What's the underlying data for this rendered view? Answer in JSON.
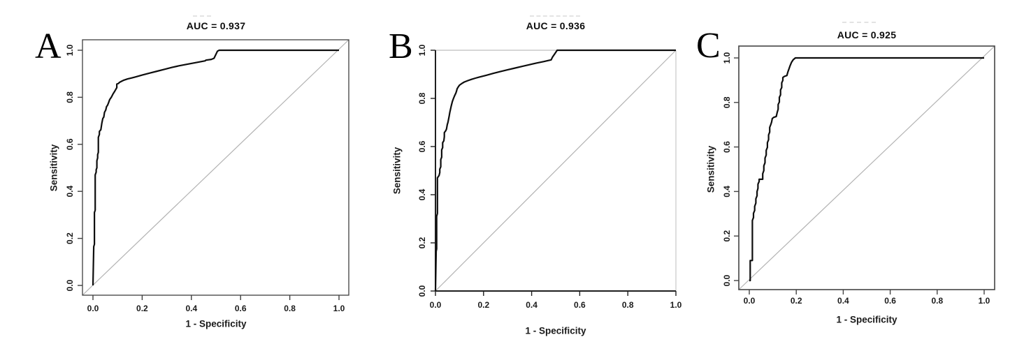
{
  "figure_type": "ROC curve comparison figure, three panels",
  "chart_data": [
    {
      "panel_label": "A",
      "type": "line",
      "title": "AUC = 0.937",
      "auc": 0.937,
      "xlabel": "1 - Specificity",
      "ylabel": "Sensitivity",
      "xlim": [
        0.0,
        1.0
      ],
      "ylim": [
        0.0,
        1.0
      ],
      "x_ticks": [
        0.0,
        0.2,
        0.4,
        0.6,
        0.8,
        1.0
      ],
      "y_ticks": [
        0.0,
        0.2,
        0.4,
        0.6,
        0.8,
        1.0
      ],
      "grid": false,
      "legend": "none",
      "box_style": "full-box",
      "series": [
        {
          "name": "roc-curve",
          "color": "#0d0d0d",
          "points": [
            [
              0.0,
              0.0
            ],
            [
              0.003,
              0.165
            ],
            [
              0.006,
              0.175
            ],
            [
              0.006,
              0.31
            ],
            [
              0.009,
              0.32
            ],
            [
              0.009,
              0.47
            ],
            [
              0.013,
              0.482
            ],
            [
              0.013,
              0.492
            ],
            [
              0.016,
              0.5
            ],
            [
              0.016,
              0.53
            ],
            [
              0.019,
              0.542
            ],
            [
              0.019,
              0.556
            ],
            [
              0.022,
              0.566
            ],
            [
              0.022,
              0.63
            ],
            [
              0.026,
              0.642
            ],
            [
              0.026,
              0.655
            ],
            [
              0.032,
              0.662
            ],
            [
              0.036,
              0.69
            ],
            [
              0.04,
              0.71
            ],
            [
              0.044,
              0.716
            ],
            [
              0.047,
              0.736
            ],
            [
              0.052,
              0.746
            ],
            [
              0.055,
              0.76
            ],
            [
              0.059,
              0.766
            ],
            [
              0.063,
              0.776
            ],
            [
              0.068,
              0.79
            ],
            [
              0.075,
              0.801
            ],
            [
              0.082,
              0.815
            ],
            [
              0.088,
              0.825
            ],
            [
              0.094,
              0.836
            ],
            [
              0.097,
              0.841
            ],
            [
              0.097,
              0.856
            ],
            [
              0.104,
              0.859
            ],
            [
              0.107,
              0.863
            ],
            [
              0.116,
              0.868
            ],
            [
              0.126,
              0.873
            ],
            [
              0.141,
              0.878
            ],
            [
              0.156,
              0.882
            ],
            [
              0.171,
              0.886
            ],
            [
              0.201,
              0.895
            ],
            [
              0.231,
              0.903
            ],
            [
              0.261,
              0.911
            ],
            [
              0.291,
              0.919
            ],
            [
              0.321,
              0.927
            ],
            [
              0.351,
              0.934
            ],
            [
              0.381,
              0.94
            ],
            [
              0.411,
              0.946
            ],
            [
              0.441,
              0.952
            ],
            [
              0.456,
              0.955
            ],
            [
              0.459,
              0.958
            ],
            [
              0.481,
              0.961
            ],
            [
              0.492,
              0.966
            ],
            [
              0.506,
              0.996
            ],
            [
              0.513,
              1.0
            ],
            [
              1.0,
              1.0
            ]
          ]
        },
        {
          "name": "chance-diagonal",
          "color": "#b3b3b3",
          "points": [
            [
              0.0,
              0.0
            ],
            [
              1.0,
              1.0
            ]
          ]
        }
      ]
    },
    {
      "panel_label": "B",
      "type": "line",
      "title": "AUC = 0.936",
      "auc": 0.936,
      "xlabel": "1 - Specificity",
      "ylabel": "Sensitivity",
      "xlim": [
        0.0,
        1.0
      ],
      "ylim": [
        0.0,
        1.0
      ],
      "x_ticks": [
        0.0,
        0.2,
        0.4,
        0.6,
        0.8,
        1.0
      ],
      "y_ticks": [
        0.0,
        0.2,
        0.4,
        0.6,
        0.8,
        1.0
      ],
      "grid": false,
      "legend": "none",
      "box_style": "dark-axes-gray-top-right",
      "series": [
        {
          "name": "roc-curve",
          "color": "#0d0d0d",
          "points": [
            [
              0.0,
              0.0
            ],
            [
              0.003,
              0.165
            ],
            [
              0.005,
              0.175
            ],
            [
              0.005,
              0.31
            ],
            [
              0.008,
              0.322
            ],
            [
              0.008,
              0.47
            ],
            [
              0.015,
              0.48
            ],
            [
              0.018,
              0.492
            ],
            [
              0.018,
              0.506
            ],
            [
              0.022,
              0.516
            ],
            [
              0.022,
              0.546
            ],
            [
              0.026,
              0.556
            ],
            [
              0.026,
              0.586
            ],
            [
              0.03,
              0.596
            ],
            [
              0.03,
              0.616
            ],
            [
              0.035,
              0.624
            ],
            [
              0.037,
              0.641
            ],
            [
              0.037,
              0.658
            ],
            [
              0.043,
              0.666
            ],
            [
              0.046,
              0.673
            ],
            [
              0.049,
              0.691
            ],
            [
              0.052,
              0.701
            ],
            [
              0.057,
              0.726
            ],
            [
              0.06,
              0.743
            ],
            [
              0.066,
              0.77
            ],
            [
              0.07,
              0.786
            ],
            [
              0.075,
              0.8
            ],
            [
              0.08,
              0.812
            ],
            [
              0.085,
              0.822
            ],
            [
              0.088,
              0.832
            ],
            [
              0.09,
              0.84
            ],
            [
              0.095,
              0.848
            ],
            [
              0.1,
              0.855
            ],
            [
              0.11,
              0.862
            ],
            [
              0.12,
              0.868
            ],
            [
              0.135,
              0.874
            ],
            [
              0.15,
              0.879
            ],
            [
              0.166,
              0.884
            ],
            [
              0.181,
              0.888
            ],
            [
              0.211,
              0.896
            ],
            [
              0.241,
              0.904
            ],
            [
              0.271,
              0.912
            ],
            [
              0.301,
              0.919
            ],
            [
              0.331,
              0.926
            ],
            [
              0.361,
              0.933
            ],
            [
              0.391,
              0.94
            ],
            [
              0.421,
              0.947
            ],
            [
              0.451,
              0.953
            ],
            [
              0.468,
              0.957
            ],
            [
              0.481,
              0.96
            ],
            [
              0.487,
              0.972
            ],
            [
              0.496,
              0.985
            ],
            [
              0.506,
              1.0
            ],
            [
              1.0,
              1.0
            ]
          ]
        },
        {
          "name": "chance-diagonal",
          "color": "#b3b3b3",
          "points": [
            [
              0.0,
              0.0
            ],
            [
              1.0,
              1.0
            ]
          ]
        }
      ]
    },
    {
      "panel_label": "C",
      "type": "line",
      "title": "AUC = 0.925",
      "auc": 0.925,
      "xlabel": "1 - Specificity",
      "ylabel": "Sensitivity",
      "xlim": [
        0.0,
        1.0
      ],
      "ylim": [
        0.0,
        1.0
      ],
      "x_ticks": [
        0.0,
        0.2,
        0.4,
        0.6,
        0.8,
        1.0
      ],
      "y_ticks": [
        0.0,
        0.2,
        0.4,
        0.6,
        0.8,
        1.0
      ],
      "grid": false,
      "legend": "none",
      "box_style": "full-box",
      "series": [
        {
          "name": "roc-curve",
          "color": "#0d0d0d",
          "points": [
            [
              0.0,
              0.0
            ],
            [
              0.004,
              0.0
            ],
            [
              0.004,
              0.09
            ],
            [
              0.013,
              0.09
            ],
            [
              0.013,
              0.27
            ],
            [
              0.018,
              0.283
            ],
            [
              0.018,
              0.302
            ],
            [
              0.023,
              0.315
            ],
            [
              0.023,
              0.333
            ],
            [
              0.028,
              0.348
            ],
            [
              0.028,
              0.367
            ],
            [
              0.033,
              0.381
            ],
            [
              0.033,
              0.4
            ],
            [
              0.037,
              0.414
            ],
            [
              0.037,
              0.433
            ],
            [
              0.042,
              0.445
            ],
            [
              0.042,
              0.455
            ],
            [
              0.057,
              0.455
            ],
            [
              0.057,
              0.48
            ],
            [
              0.062,
              0.494
            ],
            [
              0.062,
              0.515
            ],
            [
              0.067,
              0.529
            ],
            [
              0.067,
              0.55
            ],
            [
              0.072,
              0.564
            ],
            [
              0.072,
              0.585
            ],
            [
              0.077,
              0.598
            ],
            [
              0.077,
              0.619
            ],
            [
              0.082,
              0.633
            ],
            [
              0.082,
              0.654
            ],
            [
              0.087,
              0.667
            ],
            [
              0.087,
              0.688
            ],
            [
              0.092,
              0.702
            ],
            [
              0.095,
              0.712
            ],
            [
              0.098,
              0.728
            ],
            [
              0.104,
              0.733
            ],
            [
              0.115,
              0.737
            ],
            [
              0.119,
              0.756
            ],
            [
              0.123,
              0.77
            ],
            [
              0.123,
              0.791
            ],
            [
              0.128,
              0.802
            ],
            [
              0.128,
              0.823
            ],
            [
              0.133,
              0.834
            ],
            [
              0.133,
              0.856
            ],
            [
              0.138,
              0.867
            ],
            [
              0.138,
              0.888
            ],
            [
              0.143,
              0.899
            ],
            [
              0.143,
              0.912
            ],
            [
              0.149,
              0.917
            ],
            [
              0.16,
              0.921
            ],
            [
              0.164,
              0.936
            ],
            [
              0.169,
              0.951
            ],
            [
              0.174,
              0.966
            ],
            [
              0.18,
              0.981
            ],
            [
              0.187,
              0.992
            ],
            [
              0.196,
              1.0
            ],
            [
              1.0,
              1.0
            ]
          ]
        },
        {
          "name": "chance-diagonal",
          "color": "#b3b3b3",
          "points": [
            [
              0.0,
              0.0
            ],
            [
              1.0,
              1.0
            ]
          ]
        }
      ]
    }
  ]
}
